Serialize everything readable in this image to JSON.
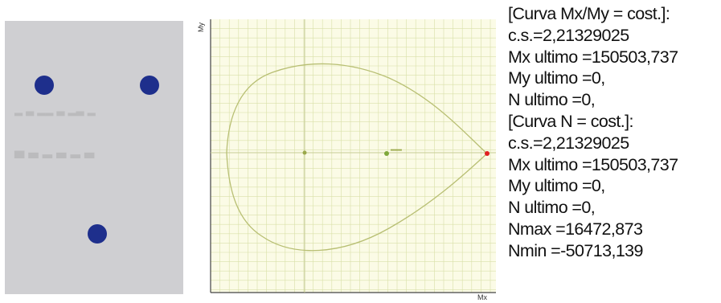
{
  "section": {
    "bar_color": "#1e2f8c",
    "panel_color": "#cfcfd2",
    "bar_count": 3
  },
  "diagram": {
    "x_axis_label": "Mx",
    "y_axis_label": "My",
    "background": "#fbfbe6",
    "grid_color": "#d9e0a8",
    "curve_color": "#b8bf73"
  },
  "results": {
    "lines": [
      "[Curva Mx/My = cost.]:",
      "c.s.=2,21329025",
      "Mx ultimo =150503,737",
      "My ultimo =0,",
      "N  ultimo =0,",
      "[Curva N = cost.]:",
      "c.s.=2,21329025",
      "Mx ultimo =150503,737",
      "My ultimo =0,",
      "N  ultimo =0,",
      "Nmax =16472,873",
      "Nmin =-50713,139"
    ]
  }
}
